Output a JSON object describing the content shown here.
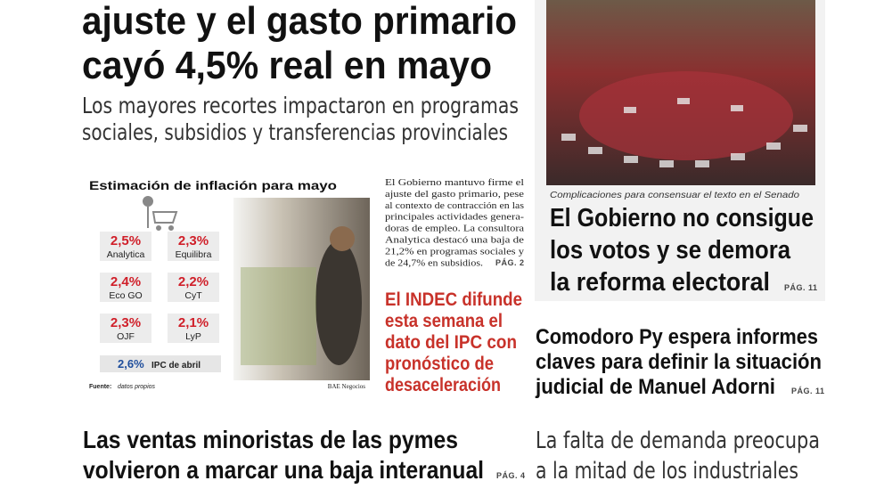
{
  "main_story": {
    "headline": [
      "ajuste y el gasto primario",
      "cayó 4,5% real en mayo"
    ],
    "subhead": [
      "Los mayores recortes impactaron en programas",
      "sociales, subsidios y transferencias provinciales"
    ],
    "body": [
      "El Gobierno mantuvo firme el",
      "ajuste del gasto primario, pese",
      "al contexto de contracción en las",
      "principales actividades genera-",
      "doras de empleo. La consultora",
      "Analytica destacó una baja de",
      "21,2% en programas sociales y",
      "de 24,7% en subsidios."
    ],
    "page_ref": "PÁG. 2"
  },
  "infographic": {
    "title": "Estimación de inflación para mayo",
    "estimates": [
      {
        "value": "2,5%",
        "source": "Analytica"
      },
      {
        "value": "2,3%",
        "source": "Equilibra"
      },
      {
        "value": "2,4%",
        "source": "Eco GO"
      },
      {
        "value": "2,2%",
        "source": "CyT"
      },
      {
        "value": "2,3%",
        "source": "OJF"
      },
      {
        "value": "2,1%",
        "source": "LyP"
      }
    ],
    "ipc_value": "2,6%",
    "ipc_label": "IPC de abril",
    "source_label": "Fuente:",
    "source_text": "datos propios",
    "credit": "BAE Negocios"
  },
  "indec_story": {
    "headline": [
      "El INDEC difunde",
      "esta semana el",
      "dato del IPC con",
      "pronóstico de",
      "desaceleración"
    ]
  },
  "senate_story": {
    "caption": "Complicaciones para consensuar el texto en el Senado",
    "headline": [
      "El Gobierno no consigue",
      "los votos y se demora",
      "la reforma electoral"
    ],
    "page_ref": "PÁG. 11"
  },
  "adorni_story": {
    "headline": [
      "Comodoro Py espera informes",
      "claves para definir la situación",
      "judicial de Manuel Adorni"
    ],
    "page_ref": "PÁG. 11"
  },
  "retail_story": {
    "headline": [
      "Las ventas minoristas de las pymes",
      "volvieron a marcar una baja interanual"
    ],
    "page_ref": "PÁG. 4"
  },
  "industry_story": {
    "headline": [
      "La falta de demanda preocupa",
      "a la mitad de los industriales"
    ]
  }
}
